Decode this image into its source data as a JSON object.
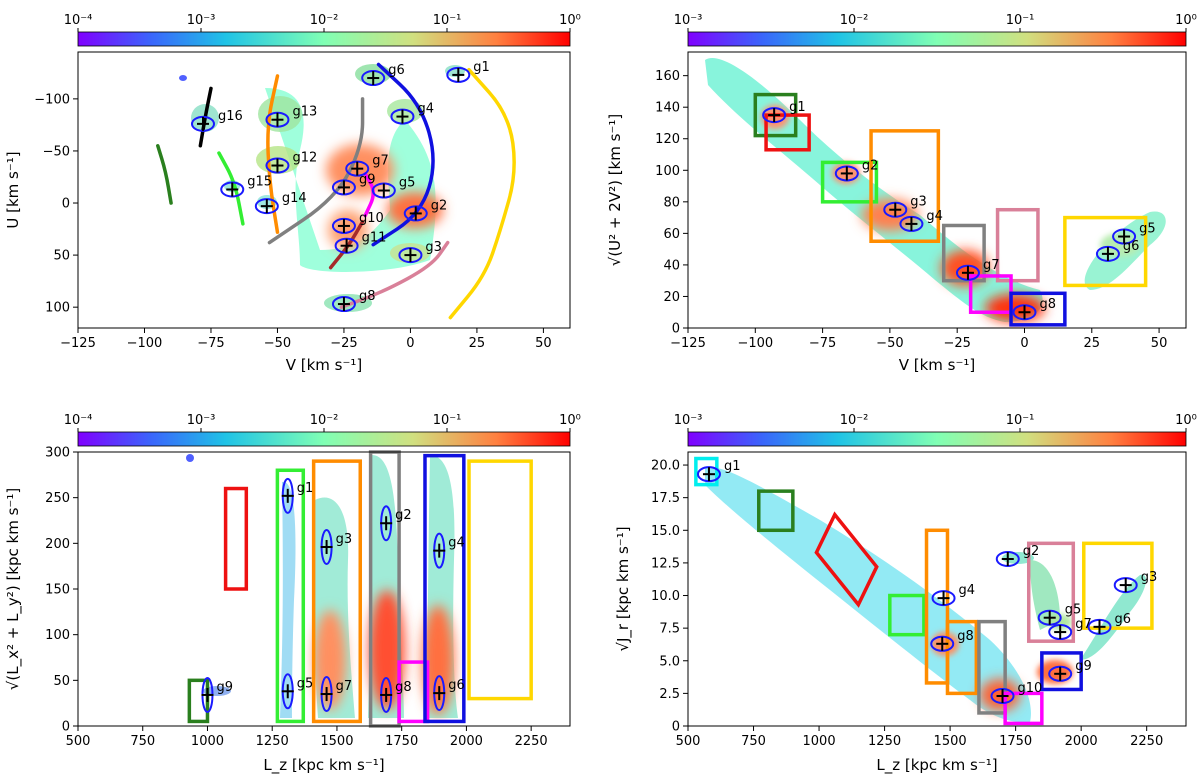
{
  "chart_data": [
    {
      "type": "scatter",
      "panel": "top-left",
      "title": "",
      "xlabel": "V [km s⁻¹]",
      "ylabel": "U [km s⁻¹]",
      "xlim": [
        -125,
        60
      ],
      "ylim": [
        120,
        -145
      ],
      "xticks": [
        -125,
        -100,
        -75,
        -50,
        -25,
        0,
        25,
        50
      ],
      "xtick_labels": [
        "−125",
        "−100",
        "−75",
        "−50",
        "−25",
        "0",
        "25",
        "50"
      ],
      "yticks": [
        -100,
        -50,
        0,
        50,
        100
      ],
      "ytick_labels": [
        "−100",
        "−50",
        "0",
        "50",
        "100"
      ],
      "colorbar": {
        "scale": "log",
        "ticks": [
          "10⁻⁴",
          "10⁻³",
          "10⁻²",
          "10⁻¹",
          "10⁰"
        ],
        "min_exp": -4,
        "max_exp": 0
      },
      "groups": [
        {
          "name": "g1",
          "x": 18,
          "y": -123
        },
        {
          "name": "g2",
          "x": 2,
          "y": 10
        },
        {
          "name": "g3",
          "x": 0,
          "y": 50
        },
        {
          "name": "g4",
          "x": -3,
          "y": -83
        },
        {
          "name": "g5",
          "x": -10,
          "y": -12
        },
        {
          "name": "g6",
          "x": -14,
          "y": -120
        },
        {
          "name": "g7",
          "x": -20,
          "y": -33
        },
        {
          "name": "g8",
          "x": -25,
          "y": 97
        },
        {
          "name": "g9",
          "x": -25,
          "y": -15
        },
        {
          "name": "g10",
          "x": -25,
          "y": 22
        },
        {
          "name": "g11",
          "x": -24,
          "y": 41
        },
        {
          "name": "g12",
          "x": -50,
          "y": -36
        },
        {
          "name": "g13",
          "x": -50,
          "y": -80
        },
        {
          "name": "g14",
          "x": -54,
          "y": 3
        },
        {
          "name": "g15",
          "x": -67,
          "y": -13
        },
        {
          "name": "g16",
          "x": -78,
          "y": -76
        }
      ],
      "arcs": [
        {
          "color": "#2a7f1e",
          "points": [
            [
              -95,
              -55
            ],
            [
              -92,
              -30
            ],
            [
              -90,
              0
            ]
          ]
        },
        {
          "color": "#33ee33",
          "points": [
            [
              -72,
              -48
            ],
            [
              -66,
              -20
            ],
            [
              -63,
              20
            ]
          ]
        },
        {
          "color": "#000000",
          "points": [
            [
              -75,
              -110
            ],
            [
              -77,
              -85
            ],
            [
              -79,
              -55
            ]
          ]
        },
        {
          "color": "#ff8c00",
          "points": [
            [
              -50,
              -122
            ],
            [
              -54,
              -75
            ],
            [
              -53,
              -20
            ],
            [
              -50,
              28
            ]
          ]
        },
        {
          "color": "#808080",
          "points": [
            [
              -18,
              -100
            ],
            [
              -18,
              -55
            ],
            [
              -28,
              -5
            ],
            [
              -53,
              38
            ]
          ]
        },
        {
          "color": "#1010e0",
          "points": [
            [
              -12,
              -133
            ],
            [
              4,
              -95
            ],
            [
              10,
              -40
            ],
            [
              4,
              10
            ],
            [
              -14,
              40
            ]
          ]
        },
        {
          "color": "#ffd700",
          "points": [
            [
              22,
              -128
            ],
            [
              37,
              -85
            ],
            [
              40,
              -30
            ],
            [
              34,
              25
            ],
            [
              28,
              70
            ],
            [
              15,
              110
            ]
          ]
        },
        {
          "color": "#ff00ff",
          "points": [
            [
              -17,
              -28
            ],
            [
              -13,
              -10
            ],
            [
              -17,
              12
            ]
          ]
        },
        {
          "color": "#a52a2a",
          "points": [
            [
              -18,
              18
            ],
            [
              -23,
              40
            ],
            [
              -30,
              62
            ]
          ]
        },
        {
          "color": "#d98099",
          "points": [
            [
              -26,
              100
            ],
            [
              -10,
              85
            ],
            [
              8,
              60
            ],
            [
              14,
              38
            ]
          ]
        }
      ]
    },
    {
      "type": "scatter",
      "panel": "top-right",
      "title": "",
      "xlabel": "V [km s⁻¹]",
      "ylabel": "√(U² + 2V²) [km s⁻¹]",
      "xlim": [
        -125,
        60
      ],
      "ylim": [
        0,
        175
      ],
      "xticks": [
        -125,
        -100,
        -75,
        -50,
        -25,
        0,
        25,
        50
      ],
      "xtick_labels": [
        "−125",
        "−100",
        "−75",
        "−50",
        "−25",
        "0",
        "25",
        "50"
      ],
      "yticks": [
        0,
        20,
        40,
        60,
        80,
        100,
        120,
        140,
        160
      ],
      "ytick_labels": [
        "0",
        "20",
        "40",
        "60",
        "80",
        "100",
        "120",
        "140",
        "160"
      ],
      "colorbar": {
        "scale": "log",
        "ticks": [
          "10⁻³",
          "10⁻²",
          "10⁻¹",
          "10⁰"
        ],
        "min_exp": -3,
        "max_exp": 0
      },
      "groups": [
        {
          "name": "g1",
          "x": -93,
          "y": 135
        },
        {
          "name": "g2",
          "x": -66,
          "y": 98
        },
        {
          "name": "g3",
          "x": -48,
          "y": 75
        },
        {
          "name": "g4",
          "x": -42,
          "y": 66
        },
        {
          "name": "g5",
          "x": 37,
          "y": 58
        },
        {
          "name": "g6",
          "x": 31,
          "y": 47
        },
        {
          "name": "g7",
          "x": -21,
          "y": 35
        },
        {
          "name": "g8",
          "x": 0,
          "y": 10
        }
      ],
      "boxes": [
        {
          "color": "#2a7f1e",
          "x0": -100,
          "x1": -85,
          "y0": 122,
          "y1": 148
        },
        {
          "color": "#ee1111",
          "x0": -96,
          "x1": -80,
          "y0": 113,
          "y1": 135
        },
        {
          "color": "#33ee33",
          "x0": -75,
          "x1": -55,
          "y0": 80,
          "y1": 105
        },
        {
          "color": "#ff8c00",
          "x0": -57,
          "x1": -32,
          "y0": 55,
          "y1": 125
        },
        {
          "color": "#808080",
          "x0": -30,
          "x1": -15,
          "y0": 30,
          "y1": 65
        },
        {
          "color": "#d98099",
          "x0": -10,
          "x1": 5,
          "y0": 30,
          "y1": 75
        },
        {
          "color": "#ff00ff",
          "x0": -20,
          "x1": -5,
          "y0": 10,
          "y1": 33
        },
        {
          "color": "#1010e0",
          "x0": -5,
          "x1": 15,
          "y0": 2,
          "y1": 22
        },
        {
          "color": "#ffd700",
          "x0": 15,
          "x1": 45,
          "y0": 27,
          "y1": 70
        }
      ]
    },
    {
      "type": "scatter",
      "panel": "bottom-left",
      "title": "",
      "xlabel": "L_z [kpc km s⁻¹]",
      "ylabel": "√(L_x² + L_y²) [kpc km s⁻¹]",
      "xlim": [
        500,
        2400
      ],
      "ylim": [
        0,
        300
      ],
      "xticks": [
        500,
        750,
        1000,
        1250,
        1500,
        1750,
        2000,
        2250
      ],
      "xtick_labels": [
        "500",
        "750",
        "1000",
        "1250",
        "1500",
        "1750",
        "2000",
        "2250"
      ],
      "yticks": [
        0,
        50,
        100,
        150,
        200,
        250,
        300
      ],
      "ytick_labels": [
        "0",
        "50",
        "100",
        "150",
        "200",
        "250",
        "300"
      ],
      "colorbar": {
        "scale": "log",
        "ticks": [
          "10⁻⁴",
          "10⁻³",
          "10⁻²",
          "10⁻¹",
          "10⁰"
        ],
        "min_exp": -4,
        "max_exp": 0
      },
      "groups": [
        {
          "name": "g1",
          "x": 1310,
          "y": 252
        },
        {
          "name": "g2",
          "x": 1690,
          "y": 222
        },
        {
          "name": "g3",
          "x": 1460,
          "y": 196
        },
        {
          "name": "g4",
          "x": 1895,
          "y": 192
        },
        {
          "name": "g5",
          "x": 1310,
          "y": 38
        },
        {
          "name": "g6",
          "x": 1895,
          "y": 36
        },
        {
          "name": "g7",
          "x": 1460,
          "y": 35
        },
        {
          "name": "g8",
          "x": 1690,
          "y": 34
        },
        {
          "name": "g9",
          "x": 1000,
          "y": 34
        }
      ],
      "boxes": [
        {
          "color": "#2a7f1e",
          "x0": 930,
          "x1": 1000,
          "y0": 5,
          "y1": 50
        },
        {
          "color": "#ee1111",
          "x0": 1070,
          "x1": 1150,
          "y0": 150,
          "y1": 260
        },
        {
          "color": "#33ee33",
          "x0": 1270,
          "x1": 1370,
          "y0": 5,
          "y1": 280
        },
        {
          "color": "#ff8c00",
          "x0": 1410,
          "x1": 1590,
          "y0": 5,
          "y1": 290
        },
        {
          "color": "#808080",
          "x0": 1630,
          "x1": 1740,
          "y0": 0,
          "y1": 300
        },
        {
          "color": "#ff00ff",
          "x0": 1740,
          "x1": 1850,
          "y0": 5,
          "y1": 70
        },
        {
          "color": "#1010e0",
          "x0": 1840,
          "x1": 1990,
          "y0": 5,
          "y1": 296
        },
        {
          "color": "#ffd700",
          "x0": 2010,
          "x1": 2250,
          "y0": 30,
          "y1": 290
        }
      ]
    },
    {
      "type": "scatter",
      "panel": "bottom-right",
      "title": "",
      "xlabel": "L_z [kpc km s⁻¹]",
      "ylabel": "√J_r [kpc km s⁻¹]",
      "xlim": [
        500,
        2400
      ],
      "ylim": [
        0,
        21
      ],
      "xticks": [
        500,
        750,
        1000,
        1250,
        1500,
        1750,
        2000,
        2250
      ],
      "xtick_labels": [
        "500",
        "750",
        "1000",
        "1250",
        "1500",
        "1750",
        "2000",
        "2250"
      ],
      "yticks": [
        0,
        2.5,
        5,
        7.5,
        10,
        12.5,
        15,
        17.5,
        20
      ],
      "ytick_labels": [
        "0",
        "2.5",
        "5.0",
        "7.5",
        "10.0",
        "12.5",
        "15.0",
        "17.5",
        "20.0"
      ],
      "colorbar": {
        "scale": "log",
        "ticks": [
          "10⁻³",
          "10⁻²",
          "10⁻¹",
          "10⁰"
        ],
        "min_exp": -3,
        "max_exp": 0
      },
      "groups": [
        {
          "name": "g1",
          "x": 580,
          "y": 19.3
        },
        {
          "name": "g2",
          "x": 1720,
          "y": 12.8
        },
        {
          "name": "g3",
          "x": 2170,
          "y": 10.8
        },
        {
          "name": "g4",
          "x": 1475,
          "y": 9.8
        },
        {
          "name": "g5",
          "x": 1880,
          "y": 8.3
        },
        {
          "name": "g6",
          "x": 2070,
          "y": 7.6
        },
        {
          "name": "g7",
          "x": 1920,
          "y": 7.2
        },
        {
          "name": "g8",
          "x": 1470,
          "y": 6.3
        },
        {
          "name": "g9",
          "x": 1920,
          "y": 4.0
        },
        {
          "name": "g10",
          "x": 1700,
          "y": 2.3
        }
      ],
      "boxes": [
        {
          "color": "#00eeee",
          "x0": 530,
          "x1": 610,
          "y0": 18.5,
          "y1": 20.5
        },
        {
          "color": "#2a7f1e",
          "x0": 770,
          "x1": 900,
          "y0": 15.0,
          "y1": 18.0
        },
        {
          "color": "#33ee33",
          "x0": 1270,
          "x1": 1400,
          "y0": 7.0,
          "y1": 10.0
        },
        {
          "color": "#ff8c00",
          "x0": 1410,
          "x1": 1490,
          "y0": 3.3,
          "y1": 15.0
        },
        {
          "color": "#ff8c00",
          "x0": 1490,
          "x1": 1600,
          "y0": 2.5,
          "y1": 8.0
        },
        {
          "color": "#808080",
          "x0": 1610,
          "x1": 1710,
          "y0": 1.0,
          "y1": 8.0
        },
        {
          "color": "#ff00ff",
          "x0": 1710,
          "x1": 1850,
          "y0": 0.2,
          "y1": 2.5
        },
        {
          "color": "#1010e0",
          "x0": 1850,
          "x1": 2000,
          "y0": 2.8,
          "y1": 5.6
        },
        {
          "color": "#d98099",
          "x0": 1800,
          "x1": 1970,
          "y0": 6.5,
          "y1": 14.0
        },
        {
          "color": "#ffd700",
          "x0": 2010,
          "x1": 2270,
          "y0": 7.5,
          "y1": 14.0
        }
      ],
      "rotated_boxes": [
        {
          "color": "#ee1111",
          "corners": [
            [
              990,
              13.3
            ],
            [
              1060,
              16.2
            ],
            [
              1220,
              12.2
            ],
            [
              1150,
              9.3
            ]
          ]
        }
      ]
    }
  ]
}
